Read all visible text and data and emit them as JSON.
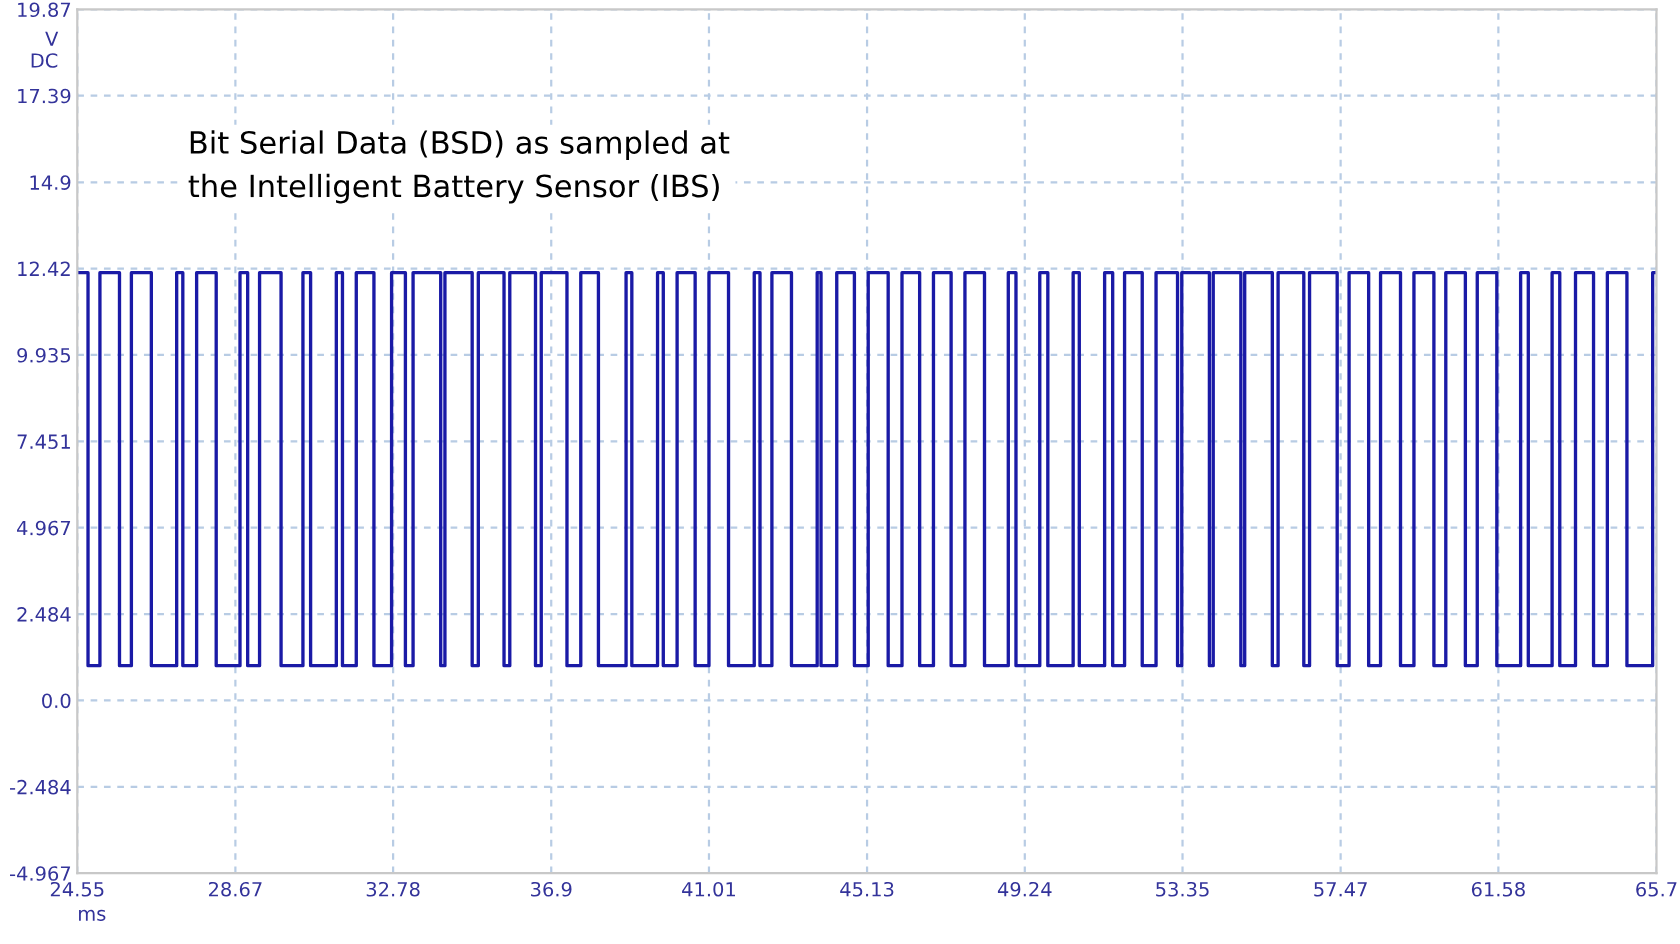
{
  "chart_data": {
    "type": "step",
    "xlabel": "ms",
    "ylabel": "V\nDC",
    "annotations": [
      "Bit Serial Data (BSD) as sampled at\nthe Intelligent Battery Sensor (IBS)"
    ],
    "xlim": [
      24.55,
      65.7
    ],
    "xticks": [
      24.55,
      28.67,
      32.78,
      36.9,
      41.01,
      45.13,
      49.24,
      53.35,
      57.47,
      61.58,
      65.7
    ],
    "ylim": [
      -4.967,
      19.87
    ],
    "yticks": [
      -4.967,
      -2.484,
      {
        "value": 0,
        "label": "0.0"
      },
      2.484,
      4.967,
      7.451,
      9.935,
      12.42,
      14.9,
      17.39,
      19.87
    ],
    "grid": true,
    "line_style": "solid",
    "series": [
      {
        "color": "#1a1aa6",
        "x": [
          24.55,
          24.83,
          25.14,
          25.65,
          25.96,
          26.48,
          27.14,
          27.3,
          27.66,
          28.17,
          28.79,
          28.99,
          29.3,
          29.86,
          30.43,
          30.63,
          31.3,
          31.46,
          31.82,
          32.28,
          32.74,
          33.1,
          33.3,
          34.02,
          34.13,
          34.84,
          35.0,
          35.67,
          35.82,
          36.49,
          36.64,
          37.31,
          37.67,
          38.13,
          38.85,
          39.0,
          39.67,
          39.82,
          40.18,
          40.65,
          41.01,
          41.52,
          42.19,
          42.34,
          42.65,
          43.16,
          43.83,
          43.93,
          44.34,
          44.8,
          45.16,
          45.68,
          46.04,
          46.5,
          46.86,
          47.32,
          47.68,
          48.19,
          48.81,
          49.01,
          49.63,
          49.84,
          50.5,
          50.66,
          51.32,
          51.53,
          51.84,
          52.3,
          52.66,
          53.22,
          53.33,
          54.05,
          54.15,
          54.87,
          54.97,
          55.69,
          55.84,
          56.51,
          56.66,
          57.38,
          57.69,
          58.2,
          58.51,
          59.03,
          59.38,
          59.9,
          60.21,
          60.72,
          61.03,
          61.54,
          62.16,
          62.36,
          62.98,
          63.18,
          63.59,
          64.06,
          64.42,
          64.93,
          65.6,
          65.7
        ],
        "values": [
          12.3,
          1.0,
          12.3,
          1.0,
          12.3,
          1.0,
          12.3,
          1.0,
          12.3,
          1.0,
          12.3,
          1.0,
          12.3,
          1.0,
          12.3,
          1.0,
          12.3,
          1.0,
          12.3,
          1.0,
          12.3,
          1.0,
          12.3,
          1.0,
          12.3,
          1.0,
          12.3,
          1.0,
          12.3,
          1.0,
          12.3,
          1.0,
          12.3,
          1.0,
          12.3,
          1.0,
          12.3,
          1.0,
          12.3,
          1.0,
          12.3,
          1.0,
          12.3,
          1.0,
          12.3,
          1.0,
          12.3,
          1.0,
          12.3,
          1.0,
          12.3,
          1.0,
          12.3,
          1.0,
          12.3,
          1.0,
          12.3,
          1.0,
          12.3,
          1.0,
          12.3,
          1.0,
          12.3,
          1.0,
          12.3,
          1.0,
          12.3,
          1.0,
          12.3,
          1.0,
          12.3,
          1.0,
          12.3,
          1.0,
          12.3,
          1.0,
          12.3,
          1.0,
          12.3,
          1.0,
          12.3,
          1.0,
          12.3,
          1.0,
          12.3,
          1.0,
          12.3,
          1.0,
          12.3,
          1.0,
          12.3,
          1.0,
          12.3,
          1.0,
          12.3,
          1.0,
          12.3,
          1.0,
          12.3,
          12.3
        ]
      }
    ]
  }
}
